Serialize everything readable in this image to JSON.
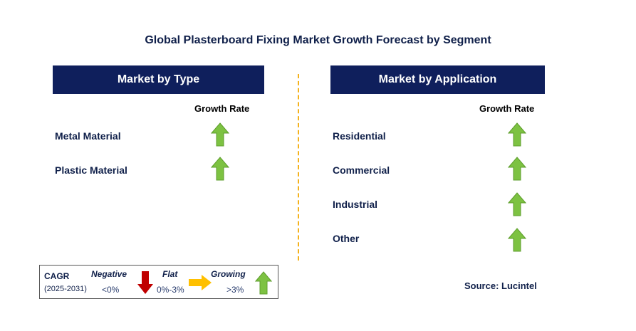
{
  "title": "Global Plasterboard Fixing Market Growth Forecast by Segment",
  "colors": {
    "header_bg": "#0f1f5c",
    "arrow_up": "#7dc242",
    "arrow_down": "#c00000",
    "arrow_flat": "#ffc000",
    "divider": "#f5b21c"
  },
  "type_panel": {
    "header": "Market by Type",
    "growth_label": "Growth Rate",
    "items": [
      {
        "label": "Metal Material",
        "trend": "up"
      },
      {
        "label": "Plastic Material",
        "trend": "up"
      }
    ]
  },
  "application_panel": {
    "header": "Market by Application",
    "growth_label": "Growth Rate",
    "items": [
      {
        "label": "Residential",
        "trend": "up"
      },
      {
        "label": "Commercial",
        "trend": "up"
      },
      {
        "label": "Industrial",
        "trend": "up"
      },
      {
        "label": "Other",
        "trend": "up"
      }
    ]
  },
  "legend": {
    "cagr": "CAGR",
    "period": "(2025-2031)",
    "negative_label": "Negative",
    "negative_range": "<0%",
    "flat_label": "Flat",
    "flat_range": "0%-3%",
    "growing_label": "Growing",
    "growing_range": ">3%"
  },
  "source": "Source: Lucintel"
}
